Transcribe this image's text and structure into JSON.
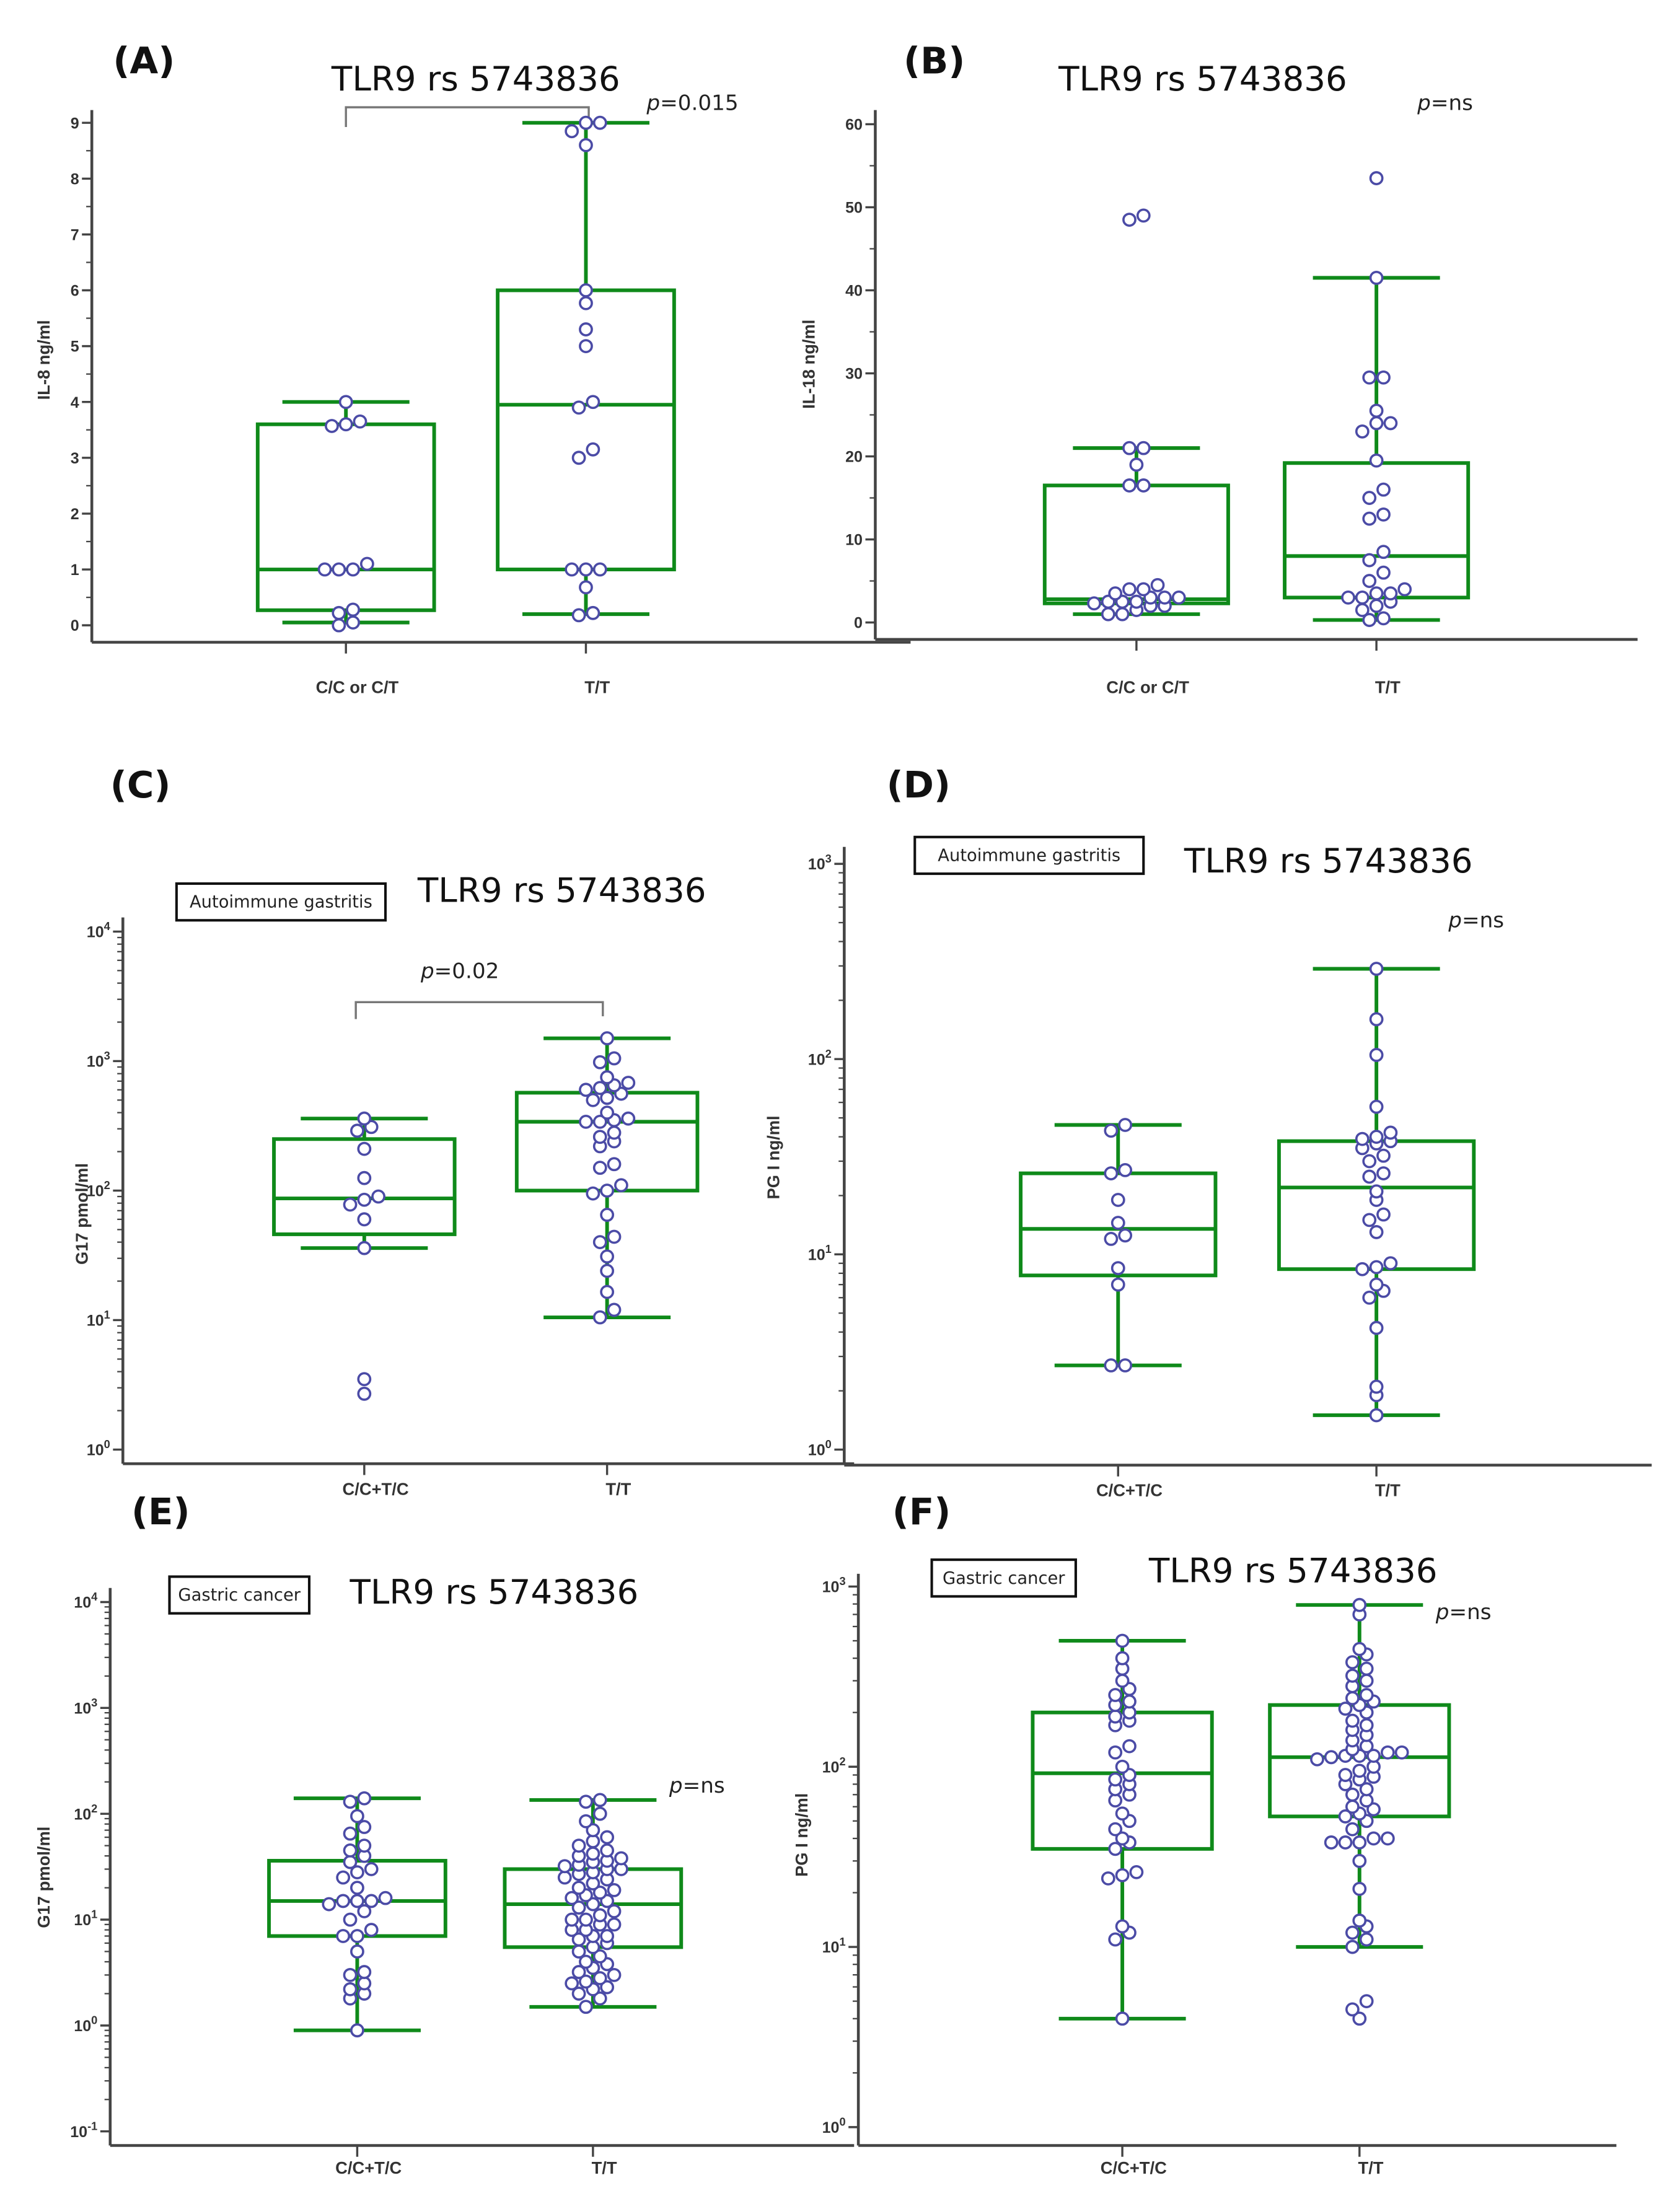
{
  "colors": {
    "box": "#0f8a1a",
    "point_stroke": "#4b4ba6",
    "axis": "#444444",
    "bracket": "#777777"
  },
  "chart_data": [
    {
      "panel": "(A)",
      "type": "box",
      "title": "TLR9 rs 5743836",
      "ylabel": "IL-8 ng/ml",
      "scale": "linear",
      "ylim": [
        0,
        9
      ],
      "ticks": [
        0,
        1,
        2,
        3,
        4,
        5,
        6,
        7,
        8,
        9
      ],
      "p_value": "p=0.015",
      "p_prefix": "p",
      "p_rest": "=0.015",
      "bracket": true,
      "annotation": null,
      "categories": [
        "C/C or C/T",
        "T/T"
      ],
      "groups": [
        {
          "min": 0.05,
          "q1": 0.27,
          "median": 1,
          "q3": 3.6,
          "max": 4,
          "points": [
            0,
            0.05,
            0.22,
            0.28,
            1,
            1,
            1,
            1.1,
            3.57,
            3.6,
            3.65,
            4
          ]
        },
        {
          "min": 0.2,
          "q1": 1,
          "median": 3.95,
          "q3": 6,
          "max": 9,
          "points": [
            0.18,
            0.22,
            0.68,
            1,
            1,
            1,
            3,
            3.15,
            3.9,
            4,
            5,
            5.3,
            5.77,
            6,
            8.6,
            8.85,
            9,
            9
          ]
        }
      ]
    },
    {
      "panel": "(B)",
      "type": "box",
      "title": "TLR9 rs 5743836",
      "ylabel": "IL-18 ng/ml",
      "scale": "linear",
      "ylim": [
        0,
        60
      ],
      "ticks": [
        0,
        10,
        20,
        30,
        40,
        50,
        60
      ],
      "p_value": "p=ns",
      "p_prefix": "p",
      "p_rest": "=ns",
      "bracket": false,
      "annotation": null,
      "categories": [
        "C/C or C/T",
        "T/T"
      ],
      "groups": [
        {
          "min": 1,
          "q1": 2.3,
          "median": 2.8,
          "q3": 16.5,
          "max": 21,
          "points": [
            1,
            1,
            1.5,
            2,
            2,
            2.3,
            2.5,
            2.5,
            2.5,
            3,
            3,
            3,
            3.5,
            4,
            4,
            4.5,
            16.5,
            16.5,
            19,
            21,
            21,
            48.5,
            49
          ]
        },
        {
          "min": 0.3,
          "q1": 3,
          "median": 8,
          "q3": 19.2,
          "max": 41.5,
          "points": [
            0.3,
            0.5,
            1.5,
            2,
            2.5,
            3,
            3,
            3.5,
            3.5,
            4,
            5,
            6,
            7.5,
            8.5,
            12.5,
            13,
            15,
            16,
            19.5,
            23,
            24,
            24,
            25.5,
            29.5,
            29.5,
            41.5,
            53.5
          ]
        }
      ]
    },
    {
      "panel": "(C)",
      "type": "box",
      "title": "TLR9 rs 5743836",
      "ylabel": "G17 pmol/ml",
      "scale": "log",
      "ylim": [
        1,
        10000
      ],
      "ticks": [
        0,
        1,
        2,
        3,
        4
      ],
      "p_value": "p=0.02",
      "p_prefix": "p",
      "p_rest": "=0.02",
      "bracket": true,
      "annotation": "Autoimmune gastritis",
      "categories": [
        "C/C+T/C",
        "T/T"
      ],
      "groups": [
        {
          "min": 36,
          "q1": 46,
          "median": 87,
          "q3": 250,
          "max": 360,
          "points": [
            2.7,
            3.5,
            36,
            60,
            78,
            85,
            90,
            125,
            210,
            290,
            310,
            360
          ]
        },
        {
          "min": 10.5,
          "q1": 100,
          "median": 340,
          "q3": 570,
          "max": 1500,
          "points": [
            10.5,
            12,
            16.5,
            24,
            31,
            40,
            44,
            65,
            95,
            100,
            110,
            150,
            160,
            220,
            240,
            260,
            280,
            340,
            340,
            350,
            360,
            400,
            500,
            520,
            560,
            600,
            620,
            650,
            680,
            750,
            980,
            1050,
            1500
          ]
        }
      ]
    },
    {
      "panel": "(D)",
      "type": "box",
      "title": "TLR9 rs 5743836",
      "ylabel": "PG I ng/ml",
      "scale": "log",
      "ylim": [
        1,
        1000
      ],
      "ticks": [
        0,
        1,
        2,
        3
      ],
      "p_value": "p=ns",
      "p_prefix": "p",
      "p_rest": "=ns",
      "bracket": false,
      "annotation": "Autoimmune gastritis",
      "categories": [
        "C/C+T/C",
        "T/T"
      ],
      "groups": [
        {
          "min": 2.7,
          "q1": 7.8,
          "median": 13.5,
          "q3": 26,
          "max": 46,
          "points": [
            2.7,
            2.7,
            7,
            8.5,
            12,
            12.5,
            14.5,
            19,
            26,
            27,
            43,
            46
          ]
        },
        {
          "min": 1.5,
          "q1": 8.4,
          "median": 22,
          "q3": 38,
          "max": 290,
          "points": [
            1.5,
            1.9,
            2.1,
            4.2,
            6,
            6.5,
            7,
            8.4,
            8.6,
            9,
            13,
            15,
            16,
            19,
            21,
            25,
            26,
            30,
            32,
            35,
            37,
            38,
            39,
            40,
            42,
            57,
            105,
            160,
            290
          ]
        }
      ]
    },
    {
      "panel": "(E)",
      "type": "box",
      "title": "TLR9 rs 5743836",
      "ylabel": "G17 pmol/ml",
      "scale": "log",
      "ylim": [
        0.1,
        10000
      ],
      "ticks": [
        -1,
        0,
        1,
        2,
        3,
        4
      ],
      "p_value": "p=ns",
      "p_prefix": "p",
      "p_rest": "=ns",
      "bracket": false,
      "annotation": "Gastric cancer",
      "categories": [
        "C/C+T/C",
        "T/T"
      ],
      "groups": [
        {
          "min": 0.9,
          "q1": 7,
          "median": 15,
          "q3": 36,
          "max": 140,
          "points": [
            0.9,
            1.8,
            2,
            2.2,
            2.5,
            3,
            3.2,
            5,
            7,
            7,
            8,
            10,
            12,
            14,
            15,
            15,
            15,
            16,
            20,
            25,
            28,
            30,
            35,
            40,
            45,
            50,
            65,
            75,
            95,
            130,
            140
          ]
        },
        {
          "min": 1.5,
          "q1": 5.5,
          "median": 14,
          "q3": 30,
          "max": 135,
          "points": [
            1.5,
            1.8,
            2,
            2.2,
            2.3,
            2.5,
            2.6,
            2.8,
            3,
            3.2,
            3.5,
            3.8,
            4,
            4.5,
            5,
            5.5,
            6,
            6.5,
            7,
            7,
            8,
            8,
            9,
            9,
            10,
            10,
            11,
            12,
            13,
            14,
            15,
            16,
            17,
            18,
            19,
            20,
            22,
            24,
            25,
            27,
            28,
            30,
            30,
            32,
            33,
            35,
            36,
            38,
            40,
            42,
            45,
            50,
            55,
            60,
            70,
            85,
            100,
            130,
            135
          ]
        }
      ]
    },
    {
      "panel": "(F)",
      "type": "box",
      "title": "TLR9 rs 5743836",
      "ylabel": "PG I ng/ml",
      "scale": "log",
      "ylim": [
        1,
        1000
      ],
      "ticks": [
        0,
        1,
        2,
        3
      ],
      "p_value": "p=ns",
      "p_prefix": "p",
      "p_rest": "=ns",
      "bracket": false,
      "annotation": "Gastric cancer",
      "categories": [
        "C/C+T/C",
        "T/T"
      ],
      "groups": [
        {
          "min": 4,
          "q1": 35,
          "median": 92,
          "q3": 200,
          "max": 500,
          "points": [
            4,
            11,
            12,
            13,
            24,
            25,
            26,
            35,
            38,
            40,
            45,
            50,
            55,
            65,
            70,
            75,
            80,
            85,
            90,
            100,
            120,
            130,
            170,
            180,
            190,
            200,
            220,
            230,
            250,
            270,
            300,
            350,
            400,
            500
          ]
        },
        {
          "min": 10,
          "q1": 53,
          "median": 113,
          "q3": 220,
          "max": 790,
          "points": [
            4,
            4.5,
            5,
            10,
            11,
            12,
            13,
            14,
            21,
            30,
            38,
            38,
            38,
            40,
            40,
            45,
            50,
            53,
            55,
            58,
            60,
            65,
            70,
            75,
            80,
            85,
            88,
            90,
            95,
            100,
            110,
            113,
            115,
            115,
            115,
            120,
            120,
            125,
            130,
            140,
            150,
            160,
            170,
            180,
            200,
            210,
            220,
            230,
            240,
            250,
            280,
            300,
            320,
            350,
            380,
            420,
            450,
            700,
            790
          ]
        }
      ]
    }
  ]
}
